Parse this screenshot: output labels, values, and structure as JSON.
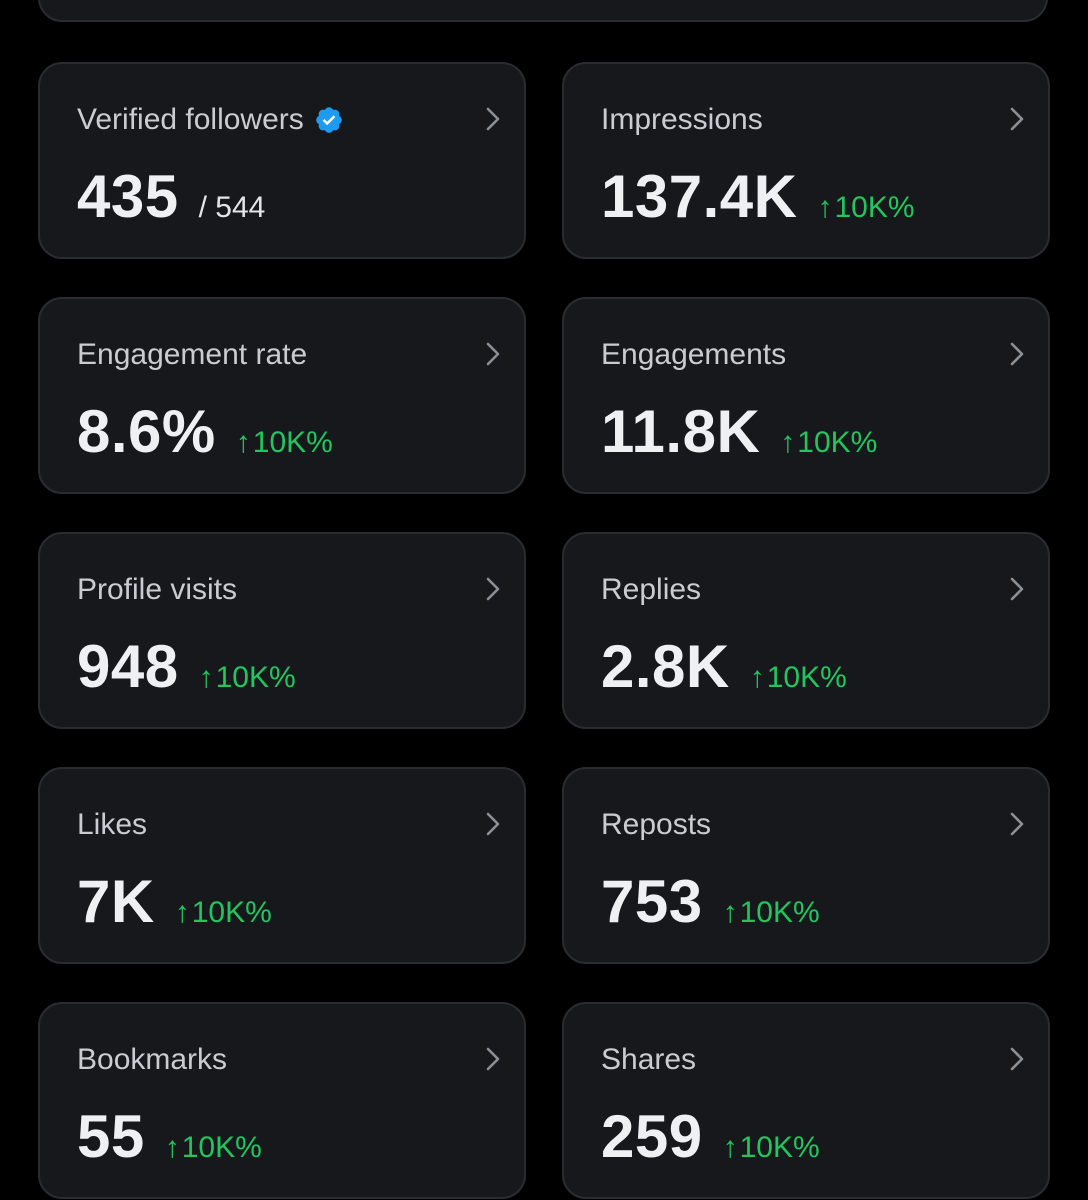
{
  "colors": {
    "background": "#000000",
    "card": "#16181c",
    "border": "#2a2c30",
    "positive": "#22c55e",
    "verified": "#1d9bf0"
  },
  "cards": [
    {
      "title": "Verified followers",
      "value": "435",
      "secondary": "/ 544",
      "icon": "verified-badge-icon"
    },
    {
      "title": "Impressions",
      "value": "137.4K",
      "delta": "10K%",
      "arrow": "↑"
    },
    {
      "title": "Engagement rate",
      "value": "8.6%",
      "delta": "10K%",
      "arrow": "↑"
    },
    {
      "title": "Engagements",
      "value": "11.8K",
      "delta": "10K%",
      "arrow": "↑"
    },
    {
      "title": "Profile visits",
      "value": "948",
      "delta": "10K%",
      "arrow": "↑"
    },
    {
      "title": "Replies",
      "value": "2.8K",
      "delta": "10K%",
      "arrow": "↑"
    },
    {
      "title": "Likes",
      "value": "7K",
      "delta": "10K%",
      "arrow": "↑"
    },
    {
      "title": "Reposts",
      "value": "753",
      "delta": "10K%",
      "arrow": "↑"
    },
    {
      "title": "Bookmarks",
      "value": "55",
      "delta": "10K%",
      "arrow": "↑"
    },
    {
      "title": "Shares",
      "value": "259",
      "delta": "10K%",
      "arrow": "↑"
    }
  ]
}
